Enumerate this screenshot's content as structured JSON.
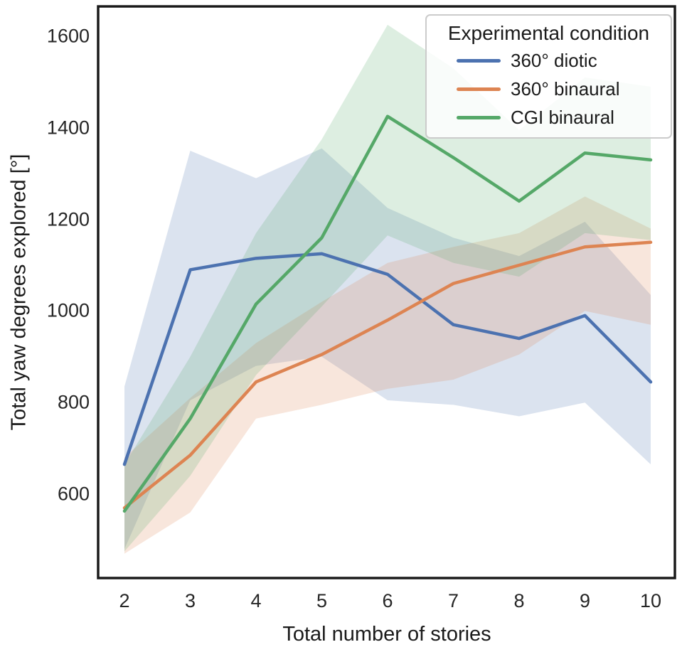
{
  "figure": {
    "xlabel": "Total number of stories",
    "ylabel": "Total yaw degrees explored [°]",
    "legend_title": "Experimental condition",
    "frame_color": "#1a1a1a",
    "text_color": "#262626",
    "background": "#ffffff"
  },
  "chart_data": {
    "type": "line",
    "title": "",
    "xlabel": "Total number of stories",
    "ylabel": "Total yaw degrees explored [°]",
    "x": [
      2,
      3,
      4,
      5,
      6,
      7,
      8,
      9,
      10
    ],
    "x_ticks": [
      "2",
      "3",
      "4",
      "5",
      "6",
      "7",
      "8",
      "9",
      "10"
    ],
    "y_ticks": [
      "600",
      "800",
      "1000",
      "1200",
      "1400",
      "1600"
    ],
    "y_tick_values": [
      600,
      800,
      1000,
      1200,
      1400,
      1600
    ],
    "xlim": [
      1.6,
      10.4
    ],
    "ylim": [
      405,
      1667
    ],
    "grid": false,
    "band_opacity": 0.2,
    "legend": {
      "title": "Experimental condition",
      "position": "upper right"
    },
    "series": [
      {
        "name": "360° diotic",
        "color": "#4C72B0",
        "values": [
          665,
          1090,
          1115,
          1125,
          1080,
          970,
          940,
          990,
          845
        ],
        "ci_low": [
          480,
          805,
          880,
          900,
          805,
          795,
          770,
          800,
          665
        ],
        "ci_high": [
          835,
          1350,
          1290,
          1355,
          1225,
          1160,
          1120,
          1195,
          1035
        ]
      },
      {
        "name": "360° binaural",
        "color": "#DD8452",
        "values": [
          570,
          685,
          845,
          905,
          980,
          1060,
          1100,
          1140,
          1150
        ],
        "ci_low": [
          470,
          560,
          765,
          795,
          830,
          850,
          905,
          1000,
          970
        ],
        "ci_high": [
          680,
          810,
          930,
          1020,
          1105,
          1140,
          1170,
          1250,
          1180
        ]
      },
      {
        "name": "CGI binaural",
        "color": "#55A868",
        "values": [
          563,
          765,
          1015,
          1160,
          1425,
          1335,
          1240,
          1345,
          1330
        ],
        "ci_low": [
          475,
          640,
          860,
          1010,
          1165,
          1105,
          1075,
          1170,
          1155
        ],
        "ci_high": [
          665,
          900,
          1170,
          1375,
          1625,
          1530,
          1395,
          1510,
          1490
        ]
      }
    ]
  }
}
